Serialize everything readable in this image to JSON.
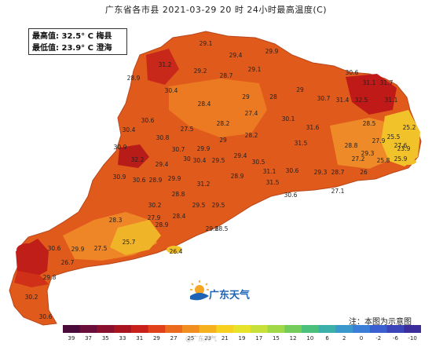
{
  "title": "广东省各市县 2021-03-29 20 时 24小时最高温度(C)",
  "stats": {
    "max_line": "最高值: 32.5° C  梅县",
    "min_line": "最低值: 23.9° C  澄海"
  },
  "brand": {
    "logo_text": "广东天气"
  },
  "note": "注：本图为示意图",
  "watermark": "@广东天气",
  "legend": {
    "labels": [
      "39",
      "37",
      "35",
      "33",
      "31",
      "29",
      "27",
      "25",
      "23",
      "21",
      "19",
      "17",
      "15",
      "12",
      "10",
      "6",
      "2",
      "0",
      "-2",
      "-6",
      "-10"
    ],
    "colors": [
      "#4a0a3a",
      "#6a0f3a",
      "#8a1030",
      "#a81420",
      "#c8201a",
      "#e0401a",
      "#ec6a1e",
      "#f08f1f",
      "#f5b21e",
      "#f6d11f",
      "#e7e32a",
      "#c8e03a",
      "#a0d848",
      "#74cc5a",
      "#4ac07c",
      "#3ab0a8",
      "#3b98cc",
      "#3a7ed8",
      "#3b5fd0",
      "#3b44b8",
      "#3b2e9c"
    ]
  },
  "values": [
    {
      "v": "29.1"
    },
    {
      "v": "29.4"
    },
    {
      "v": "29.9"
    },
    {
      "v": "31.2"
    },
    {
      "v": "28.9"
    },
    {
      "v": "30.4"
    },
    {
      "v": "29.2"
    },
    {
      "v": "28.7"
    },
    {
      "v": "29.1"
    },
    {
      "v": "31.1"
    },
    {
      "v": "30.6"
    },
    {
      "v": "31.7"
    },
    {
      "v": "28.4"
    },
    {
      "v": "29"
    },
    {
      "v": "28"
    },
    {
      "v": "29"
    },
    {
      "v": "30.7"
    },
    {
      "v": "31.4"
    },
    {
      "v": "32.5"
    },
    {
      "v": "31.1"
    },
    {
      "v": "30.6"
    },
    {
      "v": "27.4"
    },
    {
      "v": "30.1"
    },
    {
      "v": "28.5"
    },
    {
      "v": "25.2"
    },
    {
      "v": "27.5"
    },
    {
      "v": "28.2"
    },
    {
      "v": "31.6"
    },
    {
      "v": "27.9"
    },
    {
      "v": "25.5"
    },
    {
      "v": "30.4"
    },
    {
      "v": "30.8"
    },
    {
      "v": "28.2"
    },
    {
      "v": "27.6"
    },
    {
      "v": "23.9"
    },
    {
      "v": "30.9"
    },
    {
      "v": "30.7"
    },
    {
      "v": "29.9"
    },
    {
      "v": "29"
    },
    {
      "v": "31.5"
    },
    {
      "v": "28.8"
    },
    {
      "v": "29.3"
    },
    {
      "v": "30.4"
    },
    {
      "v": "30"
    },
    {
      "v": "29.5"
    },
    {
      "v": "29.4"
    },
    {
      "v": "30.5"
    },
    {
      "v": "27.2"
    },
    {
      "v": "25.8"
    },
    {
      "v": "25.9"
    },
    {
      "v": "32.2"
    },
    {
      "v": "29.4"
    },
    {
      "v": "28.9"
    },
    {
      "v": "31.1"
    },
    {
      "v": "30.6"
    },
    {
      "v": "29.3"
    },
    {
      "v": "28.7"
    },
    {
      "v": "26"
    },
    {
      "v": "30.9"
    },
    {
      "v": "30.6"
    },
    {
      "v": "29.9"
    },
    {
      "v": "31.2"
    },
    {
      "v": "28.9"
    },
    {
      "v": "31.5"
    },
    {
      "v": "30.6"
    },
    {
      "v": "28.8"
    },
    {
      "v": "27.1"
    },
    {
      "v": "30.2"
    },
    {
      "v": "29.5"
    },
    {
      "v": "29.5"
    },
    {
      "v": "28.4"
    },
    {
      "v": "27.9"
    },
    {
      "v": "28.3"
    },
    {
      "v": "28.9"
    },
    {
      "v": "29.8"
    },
    {
      "v": "28.5"
    },
    {
      "v": "25.7"
    },
    {
      "v": "30.6"
    },
    {
      "v": "29.9"
    },
    {
      "v": "27.5"
    },
    {
      "v": "26.4"
    },
    {
      "v": "26.7"
    },
    {
      "v": "30.2"
    },
    {
      "v": "30.6"
    },
    {
      "v": "29.8"
    }
  ]
}
